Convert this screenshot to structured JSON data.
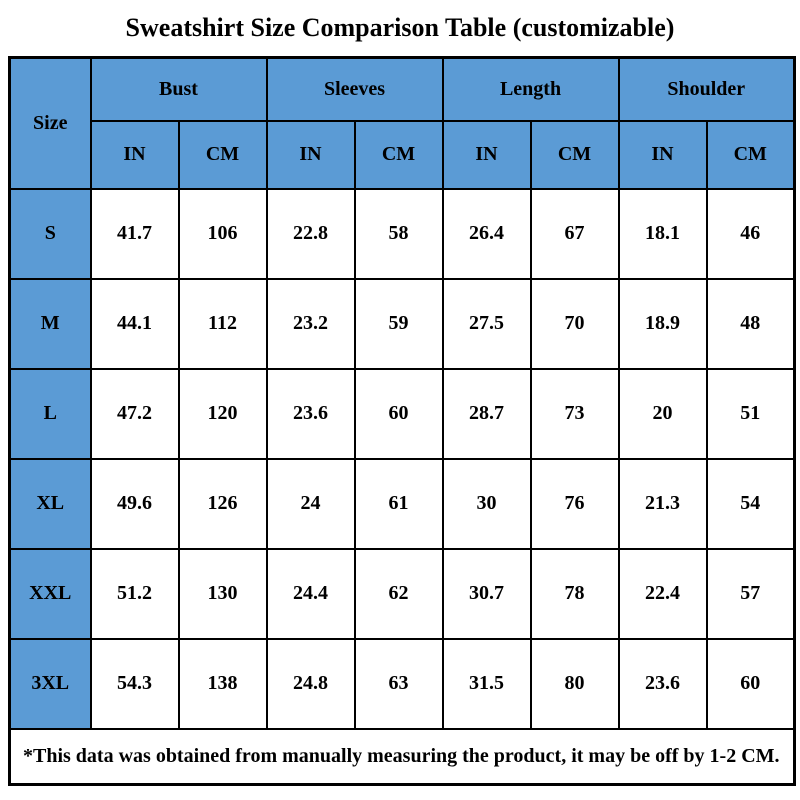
{
  "title": "Sweatshirt Size Comparison Table (customizable)",
  "colors": {
    "header_bg": "#5B9BD5",
    "border": "#000000",
    "text": "#000000",
    "background": "#FFFFFF"
  },
  "chart_data": {
    "type": "table",
    "title": "Sweatshirt Size Comparison Table (customizable)",
    "size_header": "Size",
    "groups": [
      "Bust",
      "Sleeves",
      "Length",
      "Shoulder"
    ],
    "units": [
      "IN",
      "CM",
      "IN",
      "CM",
      "IN",
      "CM",
      "IN",
      "CM"
    ],
    "rows": [
      {
        "size": "S",
        "values": [
          41.7,
          106,
          22.8,
          58,
          26.4,
          67,
          18.1,
          46
        ]
      },
      {
        "size": "M",
        "values": [
          44.1,
          112,
          23.2,
          59,
          27.5,
          70,
          18.9,
          48
        ]
      },
      {
        "size": "L",
        "values": [
          47.2,
          120,
          23.6,
          60,
          28.7,
          73,
          20,
          51
        ]
      },
      {
        "size": "XL",
        "values": [
          49.6,
          126,
          24,
          61,
          30,
          76,
          21.3,
          54
        ]
      },
      {
        "size": "XXL",
        "values": [
          51.2,
          130,
          24.4,
          62,
          30.7,
          78,
          22.4,
          57
        ]
      },
      {
        "size": "3XL",
        "values": [
          54.3,
          138,
          24.8,
          63,
          31.5,
          80,
          23.6,
          60
        ]
      }
    ],
    "footnote": "*This data was obtained from manually measuring the product, it may be off by 1-2 CM."
  }
}
